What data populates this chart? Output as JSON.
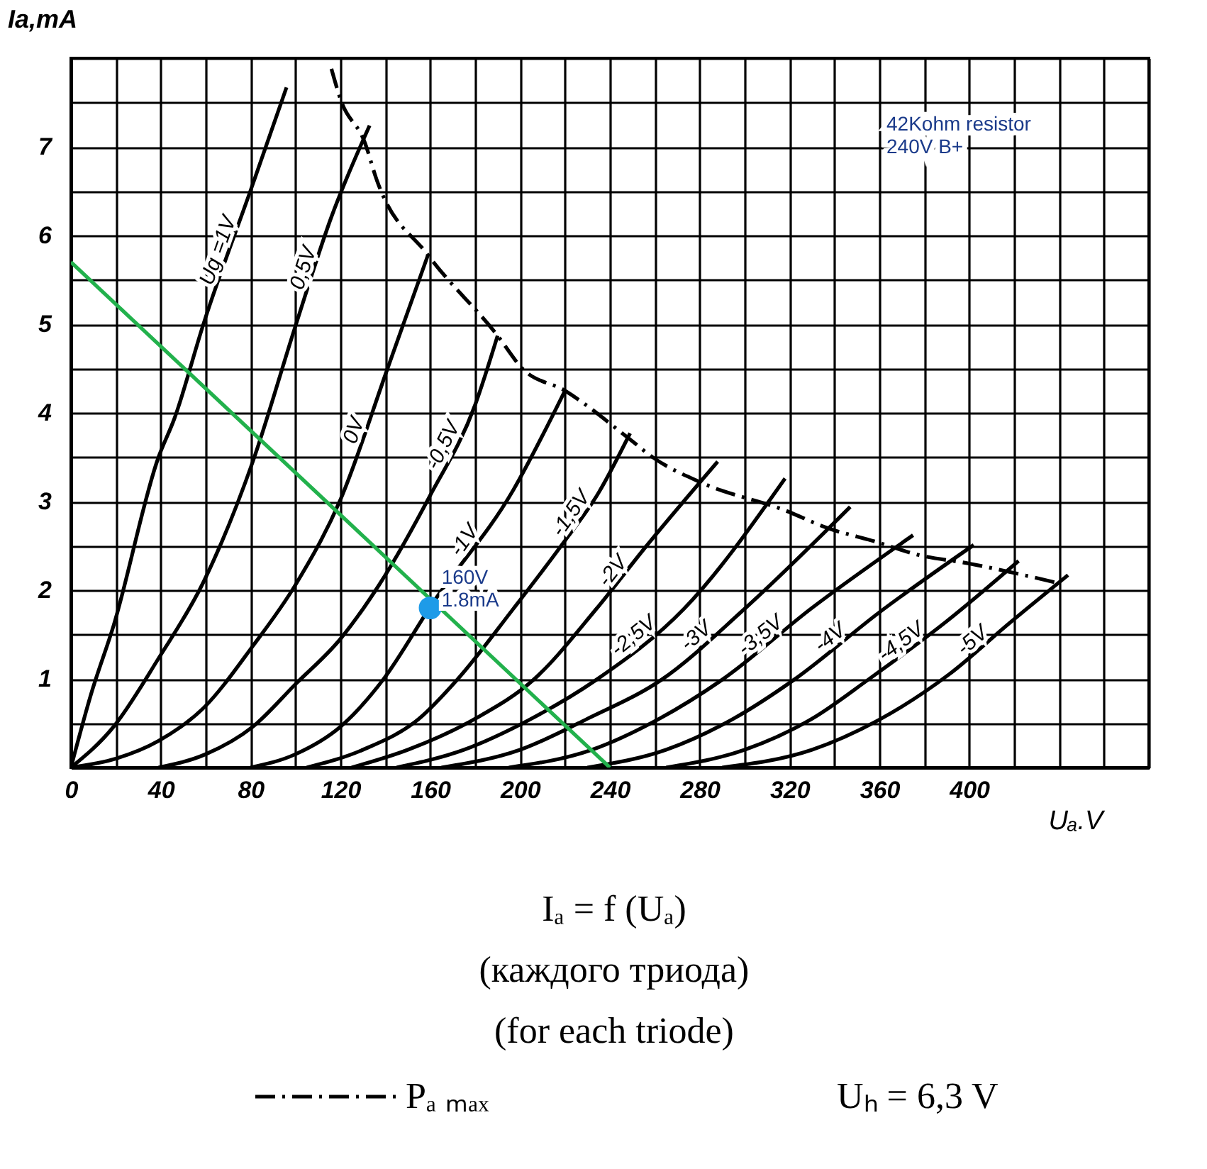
{
  "chart_data": {
    "type": "line",
    "title": "Iₐ = f (Uₐ)",
    "subtitle": "(каждого триода)\n(for each triode)",
    "xlabel": "Uₐ.V",
    "ylabel": "Ia,mA",
    "xlim": [
      0,
      480
    ],
    "ylim": [
      0,
      8
    ],
    "xticks": [
      0,
      {
        "value": 20,
        "label": null
      },
      40,
      {
        "value": 60,
        "label": null
      },
      80,
      {
        "value": 100,
        "label": null
      },
      120,
      {
        "value": 140,
        "label": null
      },
      160,
      {
        "value": 180,
        "label": null
      },
      200,
      {
        "value": 220,
        "label": null
      },
      240,
      {
        "value": 260,
        "label": null
      },
      280,
      {
        "value": 300,
        "label": null
      },
      320,
      {
        "value": 340,
        "label": null
      },
      360,
      {
        "value": 380,
        "label": null
      },
      400,
      {
        "value": 420,
        "label": null
      },
      {
        "value": 440,
        "label": null
      },
      {
        "value": 460,
        "label": null
      },
      {
        "value": 480,
        "label": null
      }
    ],
    "yticks": [
      {
        "value": 0,
        "label": null
      },
      {
        "value": 0.5,
        "label": null
      },
      1,
      {
        "value": 1.5,
        "label": null
      },
      2,
      {
        "value": 2.5,
        "label": null
      },
      3,
      {
        "value": 3.5,
        "label": null
      },
      4,
      {
        "value": 4.5,
        "label": null
      },
      5,
      {
        "value": 5.5,
        "label": null
      },
      6,
      {
        "value": 6.5,
        "label": null
      },
      7,
      {
        "value": 7.5,
        "label": null
      },
      {
        "value": 8,
        "label": null
      }
    ],
    "grid": true,
    "legend": "bottom",
    "series": [
      {
        "name": "Ug =1V",
        "color": "#000000",
        "x": [
          0,
          9,
          19,
          39,
          46,
          59,
          81,
          96
        ],
        "values": [
          0,
          0.83,
          1.6,
          3.5,
          3.93,
          5.0,
          6.58,
          7.67
        ]
      },
      {
        "name": "0,5V",
        "color": "#000000",
        "x": [
          0,
          19,
          39,
          59,
          81,
          100,
          116,
          133
        ],
        "values": [
          0,
          0.46,
          1.23,
          2.09,
          3.45,
          4.98,
          6.21,
          7.24
        ]
      },
      {
        "name": "0V",
        "color": "#000000",
        "x": [
          0,
          20,
          39,
          59,
          81,
          100,
          120,
          141,
          159
        ],
        "values": [
          0,
          0.1,
          0.3,
          0.67,
          1.37,
          2.06,
          3.02,
          4.5,
          5.78
        ]
      },
      {
        "name": "-0,5V",
        "color": "#000000",
        "x": [
          39,
          60,
          81,
          100,
          120,
          137,
          160,
          180,
          190
        ],
        "values": [
          0,
          0.15,
          0.46,
          0.94,
          1.45,
          2.05,
          3.07,
          4.09,
          4.87
        ]
      },
      {
        "name": "-1V",
        "color": "#000000",
        "x": [
          80,
          100,
          120,
          139,
          161,
          197,
          220
        ],
        "values": [
          0,
          0.15,
          0.46,
          0.99,
          1.85,
          3.13,
          4.25
        ]
      },
      {
        "name": "-1,5V",
        "color": "#000000",
        "x": [
          105,
          130,
          155,
          172,
          197,
          218,
          235,
          249
        ],
        "values": [
          0,
          0.2,
          0.55,
          0.99,
          1.79,
          2.49,
          3.1,
          3.77
        ]
      },
      {
        "name": "-2V",
        "color": "#000000",
        "x": [
          125,
          150,
          180,
          206,
          234,
          256,
          288
        ],
        "values": [
          0,
          0.2,
          0.55,
          0.99,
          1.79,
          2.49,
          3.45
        ]
      },
      {
        "name": "-2,5V",
        "color": "#000000",
        "x": [
          145,
          175,
          205,
          234,
          273,
          318
        ],
        "values": [
          0,
          0.2,
          0.55,
          0.99,
          1.79,
          3.26
        ]
      },
      {
        "name": "-3V",
        "color": "#000000",
        "x": [
          165,
          200,
          230,
          263,
          300,
          347
        ],
        "values": [
          0,
          0.2,
          0.55,
          0.99,
          1.79,
          2.94
        ]
      },
      {
        "name": "-3,5V",
        "color": "#000000",
        "x": [
          195,
          232,
          262,
          290,
          330,
          375
        ],
        "values": [
          0,
          0.2,
          0.55,
          0.99,
          1.8,
          2.62
        ]
      },
      {
        "name": "-4V",
        "color": "#000000",
        "x": [
          230,
          265,
          295,
          322,
          360,
          402
        ],
        "values": [
          0,
          0.2,
          0.55,
          0.99,
          1.75,
          2.51
        ]
      },
      {
        "name": "-4,5V",
        "color": "#000000",
        "x": [
          265,
          300,
          330,
          355,
          390,
          422
        ],
        "values": [
          0,
          0.2,
          0.55,
          0.99,
          1.65,
          2.33
        ]
      },
      {
        "name": "-5V",
        "color": "#000000",
        "x": [
          290,
          330,
          360,
          391,
          418,
          444
        ],
        "values": [
          0,
          0.2,
          0.54,
          1.05,
          1.63,
          2.17
        ]
      },
      {
        "name": "Pₐ ₘₐₓ",
        "color": "#000000",
        "line_style": "dashed",
        "x": [
          116,
          120,
          131,
          136,
          159,
          190,
          201,
          220,
          249,
          259,
          281,
          318,
          337,
          358,
          377,
          400,
          438
        ],
        "values": [
          7.88,
          7.54,
          7.04,
          6.64,
          5.78,
          4.87,
          4.5,
          4.25,
          3.7,
          3.5,
          3.21,
          2.9,
          2.7,
          2.55,
          2.4,
          2.3,
          2.09
        ]
      },
      {
        "color": "#22b14c",
        "x": [
          0,
          240
        ],
        "values": [
          5.7,
          0
        ]
      },
      {
        "type": "scatter",
        "color": "#1e9be8",
        "x": [
          160
        ],
        "values": [
          1.8
        ]
      }
    ],
    "annotations": [
      "42Kohm resistor\n240V B+",
      "Uₕ = 6,3 V",
      {
        "text": "160V\n1.8mA",
        "x": 160,
        "y": 1.8
      }
    ]
  }
}
